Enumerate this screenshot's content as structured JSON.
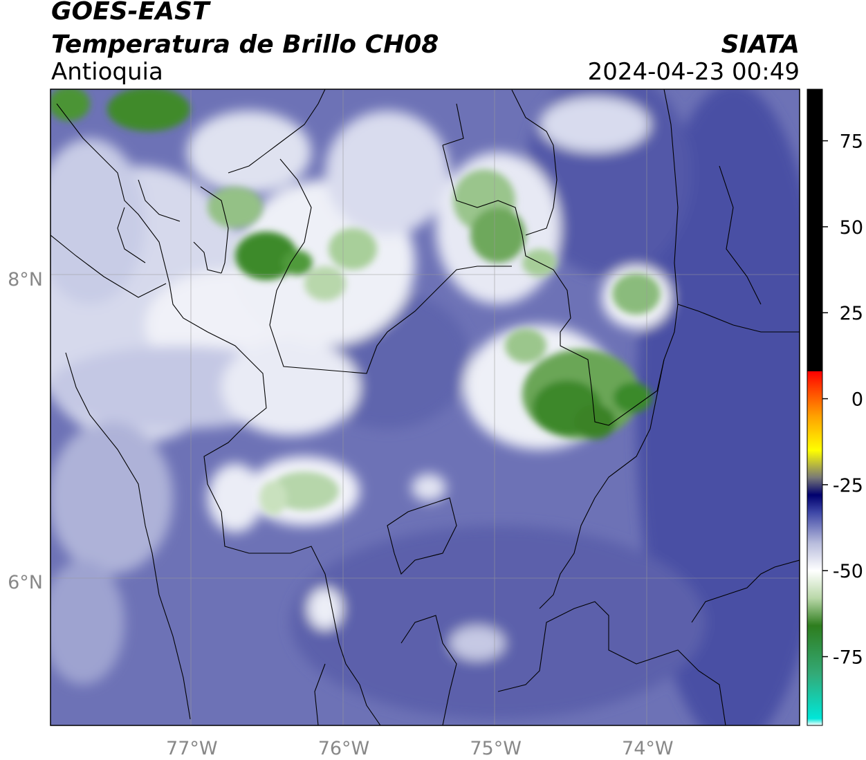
{
  "header": {
    "satellite": "GOES-EAST",
    "product": "Temperatura de Brillo CH08",
    "region": "Antioquia",
    "agency": "SIATA",
    "datetime": "2024-04-23 00:49"
  },
  "map": {
    "lon_range": [
      -77.93,
      -73.0
    ],
    "lat_range": [
      5.05,
      9.25
    ],
    "lon_ticks": [
      {
        "value": -77,
        "label": "77°W"
      },
      {
        "value": -76,
        "label": "76°W"
      },
      {
        "value": -75,
        "label": "75°W"
      },
      {
        "value": -74,
        "label": "74°W"
      }
    ],
    "lat_ticks": [
      {
        "value": 8,
        "label": "8°N"
      },
      {
        "value": 6,
        "label": "6°N"
      }
    ],
    "grid": true
  },
  "colorbar": {
    "range": [
      -95,
      90
    ],
    "ticks": [
      {
        "value": 75,
        "label": "75"
      },
      {
        "value": 50,
        "label": "50"
      },
      {
        "value": 25,
        "label": "25"
      },
      {
        "value": 0,
        "label": "0"
      },
      {
        "value": -25,
        "label": "-25"
      },
      {
        "value": -50,
        "label": "-50"
      },
      {
        "value": -75,
        "label": "-75"
      }
    ],
    "stops": [
      {
        "value": -95,
        "color": "#ffffff"
      },
      {
        "value": -93,
        "color": "#00e6d8"
      },
      {
        "value": -80,
        "color": "#33aa77"
      },
      {
        "value": -66,
        "color": "#2e7d1e"
      },
      {
        "value": -58,
        "color": "#b9d8a8"
      },
      {
        "value": -50,
        "color": "#ffffff"
      },
      {
        "value": -42,
        "color": "#b8bcdc"
      },
      {
        "value": -33,
        "color": "#3d46a6"
      },
      {
        "value": -28,
        "color": "#00006e"
      },
      {
        "value": -23,
        "color": "#777777"
      },
      {
        "value": -15,
        "color": "#ffff00"
      },
      {
        "value": -5,
        "color": "#ffa000"
      },
      {
        "value": 3,
        "color": "#ff4000"
      },
      {
        "value": 8,
        "color": "#ff0000"
      },
      {
        "value": 8.01,
        "color": "#000000"
      },
      {
        "value": 90,
        "color": "#000000"
      }
    ]
  }
}
